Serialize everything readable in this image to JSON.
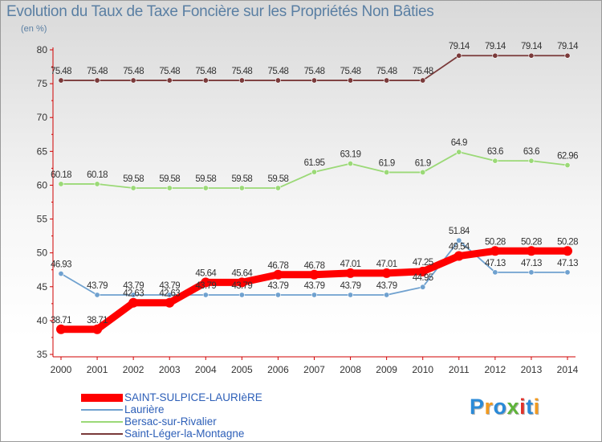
{
  "title": "Evolution du Taux de Taxe Foncière sur les Propriétés Non Bâties",
  "unit": "(en %)",
  "logo": {
    "text": "Proxiti",
    "colors": [
      "#2a8ad8",
      "#f29a1f",
      "#2a8ad8",
      "#5fb43a",
      "#e0322b",
      "#2a8ad8",
      "#f29a1f"
    ]
  },
  "chart_data": {
    "type": "line",
    "title": "Evolution du Taux de Taxe Foncière sur les Propriétés Non Bâties",
    "ylabel": "(en %)",
    "xlabel": "",
    "ylim": [
      35,
      80
    ],
    "yticks": [
      35,
      40,
      45,
      50,
      55,
      60,
      65,
      70,
      75,
      80
    ],
    "grid": false,
    "legend_position": "bottom-left",
    "categories": [
      "2000",
      "2001",
      "2002",
      "2003",
      "2004",
      "2005",
      "2006",
      "2007",
      "2008",
      "2009",
      "2010",
      "2011",
      "2012",
      "2013",
      "2014"
    ],
    "series": [
      {
        "name": "Saint-Léger-la-Montagne",
        "color": "#7a3a3a",
        "values": [
          75.48,
          75.48,
          75.48,
          75.48,
          75.48,
          75.48,
          75.48,
          75.48,
          75.48,
          75.48,
          75.48,
          79.14,
          79.14,
          79.14,
          79.14
        ],
        "labels": [
          "75.48",
          "75.48",
          "75.48",
          "75.48",
          "75.48",
          "75.48",
          "75.48",
          "75.48",
          "75.48",
          "75.48",
          "75.48",
          "79.14",
          "79.14",
          "79.14",
          "79.14"
        ]
      },
      {
        "name": "Bersac-sur-Rivalier",
        "color": "#9bd977",
        "values": [
          60.18,
          60.18,
          59.58,
          59.58,
          59.58,
          59.58,
          59.58,
          61.95,
          63.19,
          61.9,
          61.9,
          64.9,
          63.6,
          63.6,
          62.96
        ],
        "labels": [
          "60.18",
          "60.18",
          "59.58",
          "59.58",
          "59.58",
          "59.58",
          "59.58",
          "61.95",
          "63.19",
          "61.9",
          "61.9",
          "64.9",
          "63.6",
          "63.6",
          "62.96"
        ]
      },
      {
        "name": "Laurière",
        "color": "#6fa1cf",
        "values": [
          46.93,
          43.79,
          43.79,
          43.79,
          43.79,
          43.79,
          43.79,
          43.79,
          43.79,
          43.79,
          44.95,
          51.84,
          47.13,
          47.13,
          47.13
        ],
        "labels": [
          "46.93",
          "43.79",
          "43.79",
          "43.79",
          "43.79",
          "43.79",
          "43.79",
          "43.79",
          "43.79",
          "43.79",
          "44.95",
          "51.84",
          "47.13",
          "47.13",
          "47.13"
        ]
      },
      {
        "name": "SAINT-SULPICE-LAURIèRE",
        "color": "#ff0000",
        "values": [
          38.71,
          38.71,
          42.63,
          42.63,
          45.64,
          45.64,
          46.78,
          46.78,
          47.01,
          47.01,
          47.25,
          49.54,
          50.28,
          50.28,
          50.28
        ],
        "labels": [
          "38.71",
          "38.71",
          "42.63",
          "42.63",
          "45.64",
          "45.64",
          "46.78",
          "46.78",
          "47.01",
          "47.01",
          "47.25",
          "49.54",
          "50.28",
          "50.28",
          "50.28"
        ]
      }
    ],
    "legend": [
      {
        "name": "SAINT-SULPICE-LAURIèRE",
        "color": "#ff0000"
      },
      {
        "name": "Laurière",
        "color": "#6fa1cf"
      },
      {
        "name": "Bersac-sur-Rivalier",
        "color": "#9bd977"
      },
      {
        "name": "Saint-Léger-la-Montagne",
        "color": "#7a3a3a"
      }
    ]
  }
}
